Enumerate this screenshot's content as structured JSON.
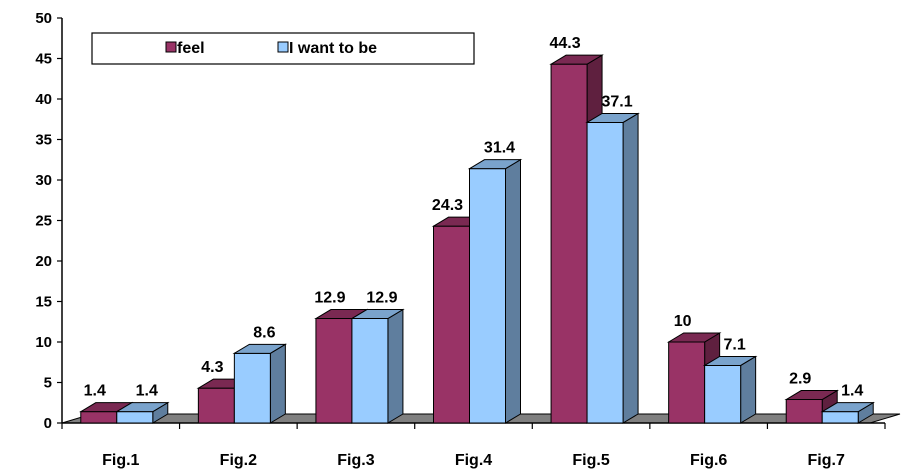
{
  "chart_data": {
    "type": "bar",
    "style": "3d-clustered-column",
    "categories": [
      "Fig.1",
      "Fig.2",
      "Fig.3",
      "Fig.4",
      "Fig.5",
      "Fig.6",
      "Fig.7"
    ],
    "series": [
      {
        "name": "feel",
        "color": "#993366",
        "values": [
          1.4,
          4.3,
          12.9,
          24.3,
          44.3,
          10,
          2.9
        ],
        "labels": [
          "1.4",
          "4.3",
          "12.9",
          "24.3",
          "44.3",
          "10",
          "2.9"
        ]
      },
      {
        "name": "I want to be",
        "color": "#99CCFF",
        "values": [
          1.4,
          8.6,
          12.9,
          31.4,
          37.1,
          7.1,
          1.4
        ],
        "labels": [
          "1.4",
          "8.6",
          "12.9",
          "31.4",
          "37.1",
          "7.1",
          "1.4"
        ]
      }
    ],
    "title": "",
    "xlabel": "",
    "ylabel": "",
    "ylim": [
      0,
      50
    ],
    "yticks": [
      "0",
      "5",
      "10",
      "15",
      "20",
      "25",
      "30",
      "35",
      "40",
      "45",
      "50"
    ],
    "legend": "top-left",
    "grid": false,
    "floor_color": "#808080"
  }
}
